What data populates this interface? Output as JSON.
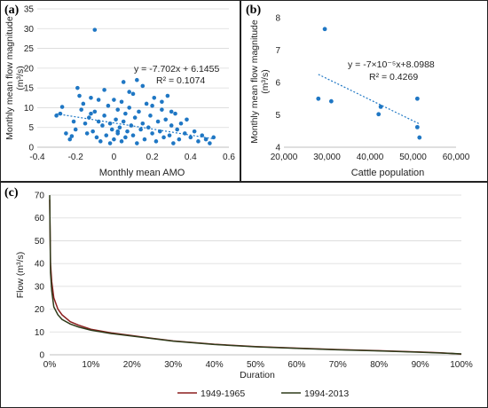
{
  "chart_data": [
    {
      "panel_label": "(a)",
      "type": "scatter",
      "xlabel": "Monthly mean AMO",
      "ylabel": "Monthly mean flow magnitude (m³/s)",
      "ylabel_line1": "Monthly mean flow magnitude",
      "ylabel_line2": "(m³/s)",
      "xlim": [
        -0.4,
        0.6
      ],
      "ylim": [
        0,
        35
      ],
      "x_ticks": [
        "-0.4",
        "-0.2",
        "0",
        "0.2",
        "0.4",
        "0.6"
      ],
      "y_ticks": [
        "0",
        "5",
        "10",
        "15",
        "20",
        "25",
        "30",
        "35"
      ],
      "grid": true,
      "point_color": "#1f77c4",
      "trendline": {
        "slope": -7.702,
        "intercept": 6.1455,
        "color": "#1f77c4"
      },
      "equation": "y = -7.702x + 6.1455",
      "r_squared": "R² = 0.1074",
      "points": [
        [
          -0.1,
          29.7
        ],
        [
          -0.3,
          8.0
        ],
        [
          -0.28,
          8.5
        ],
        [
          -0.27,
          10.2
        ],
        [
          -0.23,
          2.0
        ],
        [
          -0.22,
          2.8
        ],
        [
          -0.2,
          4.5
        ],
        [
          -0.19,
          15.0
        ],
        [
          -0.18,
          13.0
        ],
        [
          -0.17,
          9.5
        ],
        [
          -0.16,
          11.0
        ],
        [
          -0.15,
          6.0
        ],
        [
          -0.14,
          3.5
        ],
        [
          -0.13,
          7.5
        ],
        [
          -0.12,
          12.5
        ],
        [
          -0.11,
          4.0
        ],
        [
          -0.1,
          9.0
        ],
        [
          -0.09,
          2.5
        ],
        [
          -0.08,
          6.5
        ],
        [
          -0.07,
          1.5
        ],
        [
          -0.06,
          5.5
        ],
        [
          -0.05,
          14.5
        ],
        [
          -0.05,
          8.0
        ],
        [
          -0.04,
          3.0
        ],
        [
          -0.03,
          10.5
        ],
        [
          -0.02,
          1.0
        ],
        [
          -0.02,
          6.0
        ],
        [
          -0.01,
          4.5
        ],
        [
          0.0,
          12.0
        ],
        [
          0.0,
          2.0
        ],
        [
          0.01,
          7.0
        ],
        [
          0.02,
          9.5
        ],
        [
          0.02,
          3.5
        ],
        [
          0.03,
          5.0
        ],
        [
          0.04,
          11.5
        ],
        [
          0.04,
          1.5
        ],
        [
          0.05,
          6.5
        ],
        [
          0.06,
          8.5
        ],
        [
          0.06,
          2.5
        ],
        [
          0.07,
          4.0
        ],
        [
          0.08,
          10.0
        ],
        [
          0.09,
          5.5
        ],
        [
          0.1,
          13.5
        ],
        [
          0.1,
          3.0
        ],
        [
          0.11,
          7.5
        ],
        [
          0.12,
          1.0
        ],
        [
          0.13,
          9.0
        ],
        [
          0.14,
          4.5
        ],
        [
          0.15,
          15.5
        ],
        [
          0.15,
          6.0
        ],
        [
          0.16,
          2.0
        ],
        [
          0.17,
          11.0
        ],
        [
          0.18,
          5.0
        ],
        [
          0.19,
          8.0
        ],
        [
          0.2,
          3.5
        ],
        [
          0.21,
          12.5
        ],
        [
          0.22,
          1.5
        ],
        [
          0.23,
          6.5
        ],
        [
          0.24,
          4.0
        ],
        [
          0.25,
          9.5
        ],
        [
          0.26,
          2.5
        ],
        [
          0.27,
          7.0
        ],
        [
          0.28,
          13.0
        ],
        [
          0.29,
          3.0
        ],
        [
          0.3,
          5.5
        ],
        [
          0.31,
          1.0
        ],
        [
          0.32,
          8.5
        ],
        [
          0.33,
          4.5
        ],
        [
          0.34,
          2.0
        ],
        [
          0.35,
          6.0
        ],
        [
          0.37,
          3.5
        ],
        [
          0.38,
          7.0
        ],
        [
          0.4,
          2.5
        ],
        [
          0.42,
          4.0
        ],
        [
          0.44,
          1.5
        ],
        [
          0.46,
          3.0
        ],
        [
          0.48,
          2.0
        ],
        [
          0.5,
          1.0
        ],
        [
          0.52,
          2.5
        ],
        [
          -0.21,
          6.5
        ],
        [
          -0.25,
          3.5
        ],
        [
          0.05,
          16.5
        ],
        [
          0.12,
          17.0
        ],
        [
          -0.08,
          12.0
        ],
        [
          0.2,
          10.5
        ],
        [
          0.08,
          14.0
        ],
        [
          -0.12,
          8.5
        ],
        [
          0.25,
          11.5
        ],
        [
          0.3,
          9.0
        ],
        [
          0.02,
          4.0
        ]
      ]
    },
    {
      "panel_label": "(b)",
      "type": "scatter",
      "xlabel": "Cattle population",
      "ylabel": "Monthly mean flow magnitude (m³/s)",
      "ylabel_line1": "Monthly mean flow magnitude",
      "ylabel_line2": "(m³/s)",
      "xlim": [
        20000,
        60000
      ],
      "ylim": [
        4,
        8
      ],
      "x_ticks": [
        "20,000",
        "30,000",
        "40,000",
        "50,000",
        "60,000"
      ],
      "y_ticks": [
        "4",
        "5",
        "6",
        "7",
        "8"
      ],
      "grid": false,
      "point_color": "#1f77c4",
      "trendline": {
        "x_start": 28000,
        "y_start": 6.25,
        "x_end": 51500,
        "y_end": 4.72,
        "color": "#1f77c4"
      },
      "equation": "y = -7×10⁻⁵x+8.0988",
      "r_squared": "R² = 0.4269",
      "points": [
        [
          29500,
          7.65
        ],
        [
          28000,
          5.5
        ],
        [
          31000,
          5.42
        ],
        [
          42000,
          5.02
        ],
        [
          42500,
          5.25
        ],
        [
          51000,
          5.5
        ],
        [
          51000,
          4.62
        ],
        [
          51500,
          4.3
        ]
      ]
    },
    {
      "panel_label": "(c)",
      "type": "line",
      "xlabel": "Duration",
      "ylabel": "Flow (m³/s)",
      "xlim": [
        0,
        100
      ],
      "ylim": [
        0,
        70
      ],
      "x_ticks": [
        "0%",
        "10%",
        "20%",
        "30%",
        "40%",
        "50%",
        "60%",
        "70%",
        "80%",
        "90%",
        "100%"
      ],
      "y_ticks": [
        "0",
        "10",
        "20",
        "30",
        "40",
        "50",
        "60",
        "70"
      ],
      "grid": true,
      "legend_position": "bottom",
      "series": [
        {
          "name": "1949-1965",
          "color": "#8b1e1e",
          "x": [
            0,
            0.2,
            0.5,
            1,
            2,
            3,
            5,
            7,
            10,
            15,
            20,
            25,
            30,
            40,
            50,
            60,
            70,
            80,
            90,
            95,
            100
          ],
          "y": [
            68,
            40,
            32,
            25,
            20,
            17.5,
            14.5,
            13,
            11.2,
            9.6,
            8.4,
            7.2,
            6.1,
            4.6,
            3.6,
            2.9,
            2.3,
            1.8,
            1.2,
            0.9,
            0.3
          ]
        },
        {
          "name": "1994-2013",
          "color": "#2e3b1a",
          "x": [
            0,
            0.2,
            0.5,
            1,
            2,
            3,
            5,
            7,
            10,
            15,
            20,
            25,
            30,
            40,
            50,
            60,
            70,
            80,
            90,
            95,
            100
          ],
          "y": [
            70,
            36,
            28,
            21,
            17.5,
            15.5,
            13.5,
            12.2,
            10.8,
            9.3,
            8.2,
            7.1,
            6.0,
            4.5,
            3.5,
            2.8,
            2.2,
            1.7,
            1.1,
            0.8,
            0.4
          ]
        }
      ]
    }
  ]
}
